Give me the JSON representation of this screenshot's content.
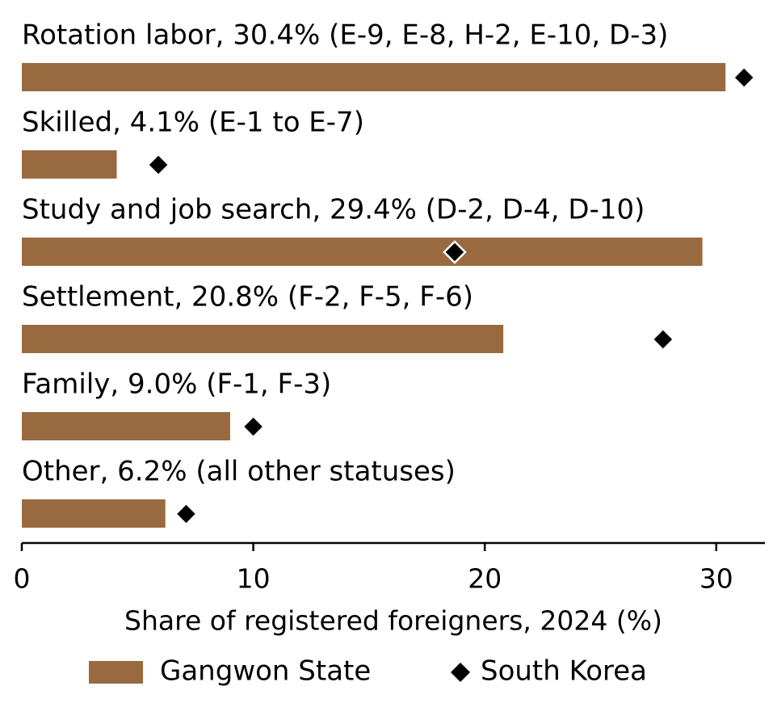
{
  "chart_data": {
    "type": "bar",
    "orientation": "horizontal",
    "categories": [
      "Rotation labor, 30.4% (E-9, E-8, H-2, E-10, D-3)",
      "Skilled, 4.1% (E-1 to E-7)",
      "Study and job search, 29.4% (D-2, D-4, D-10)",
      "Settlement, 20.8% (F-2, F-5, F-6)",
      "Family, 9.0% (F-1, F-3)",
      "Other, 6.2% (all other statuses)"
    ],
    "series": [
      {
        "name": "Gangwon State",
        "color": "#996a3f",
        "values": [
          30.4,
          4.1,
          29.4,
          20.8,
          9.0,
          6.2
        ]
      },
      {
        "name": "South Korea",
        "color": "#000000",
        "marker": "diamond",
        "values": [
          31.2,
          5.9,
          18.7,
          27.7,
          10.0,
          7.1
        ]
      }
    ],
    "xlabel": "Share of registered foreigners, 2024 (%)",
    "xlim": [
      0,
      32.1
    ],
    "xticks": [
      0,
      10,
      20,
      30
    ],
    "legend": "bottom"
  }
}
